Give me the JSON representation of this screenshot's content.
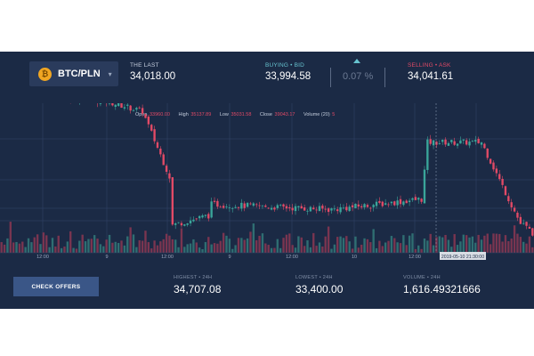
{
  "ticker": {
    "pair": "BTC/PLN",
    "last_label": "THE LAST",
    "last_value": "34,018.00",
    "bid_label": "BUYING • BID",
    "bid_value": "33,994.58",
    "change": "0.07 %",
    "ask_label": "SELLING • ASK",
    "ask_value": "34,041.61"
  },
  "ohlc": {
    "open_label": "Open",
    "open": "33960.00",
    "high_label": "High",
    "high": "35137.89",
    "low_label": "Low",
    "low": "35031.58",
    "close_label": "Close",
    "close": "39043.17",
    "volume_label": "Volume (20)",
    "volume": "5"
  },
  "chart_data": {
    "type": "candlestick",
    "x_ticks": [
      "12:00",
      "9",
      "12:00",
      "9",
      "12:00",
      "10",
      "12:00"
    ],
    "crosshair_label": "2019-05-10 21:30:00",
    "segments": [
      {
        "from_index": 0,
        "to_index": 35,
        "level_start": 34900,
        "level_end": 34800
      },
      {
        "from_index": 35,
        "to_index": 47,
        "level_start": 34800,
        "level_end": 34700
      },
      {
        "from_index": 47,
        "to_index": 57,
        "level_start": 34700,
        "level_end": 34000
      },
      {
        "from_index": 57,
        "to_index": 70,
        "level_start": 33600,
        "level_end": 33700
      },
      {
        "from_index": 70,
        "to_index": 110,
        "level_start": 33800,
        "level_end": 33750
      },
      {
        "from_index": 110,
        "to_index": 140,
        "level_start": 33750,
        "level_end": 33850
      },
      {
        "from_index": 140,
        "to_index": 142,
        "level_start": 33850,
        "level_end": 34400
      },
      {
        "from_index": 142,
        "to_index": 160,
        "level_start": 34400,
        "level_end": 34400
      },
      {
        "from_index": 160,
        "to_index": 174,
        "level_start": 34400,
        "level_end": 33550
      },
      {
        "from_index": 174,
        "to_index": 178,
        "level_start": 33600,
        "level_end": 33500
      }
    ],
    "candle_count": 178,
    "y_range": [
      33400,
      34710
    ],
    "colors": {
      "up": "#3aa59a",
      "down": "#e24a66",
      "grid": "#34466a",
      "volume_up": "#2f6e72",
      "volume_down": "#7a3550"
    }
  },
  "footer": {
    "check_offers": "CHECK OFFERS",
    "highest_label": "HIGHEST • 24H",
    "highest_value": "34,707.08",
    "lowest_label": "LOWEST • 24H",
    "lowest_value": "33,400.00",
    "volume_label": "VOLUME • 24H",
    "volume_value": "1,616.49321666"
  },
  "icons": {
    "coin": "bitcoin-coin-icon",
    "dropdown": "chevron-down-icon",
    "trend": "caret-up-icon"
  }
}
